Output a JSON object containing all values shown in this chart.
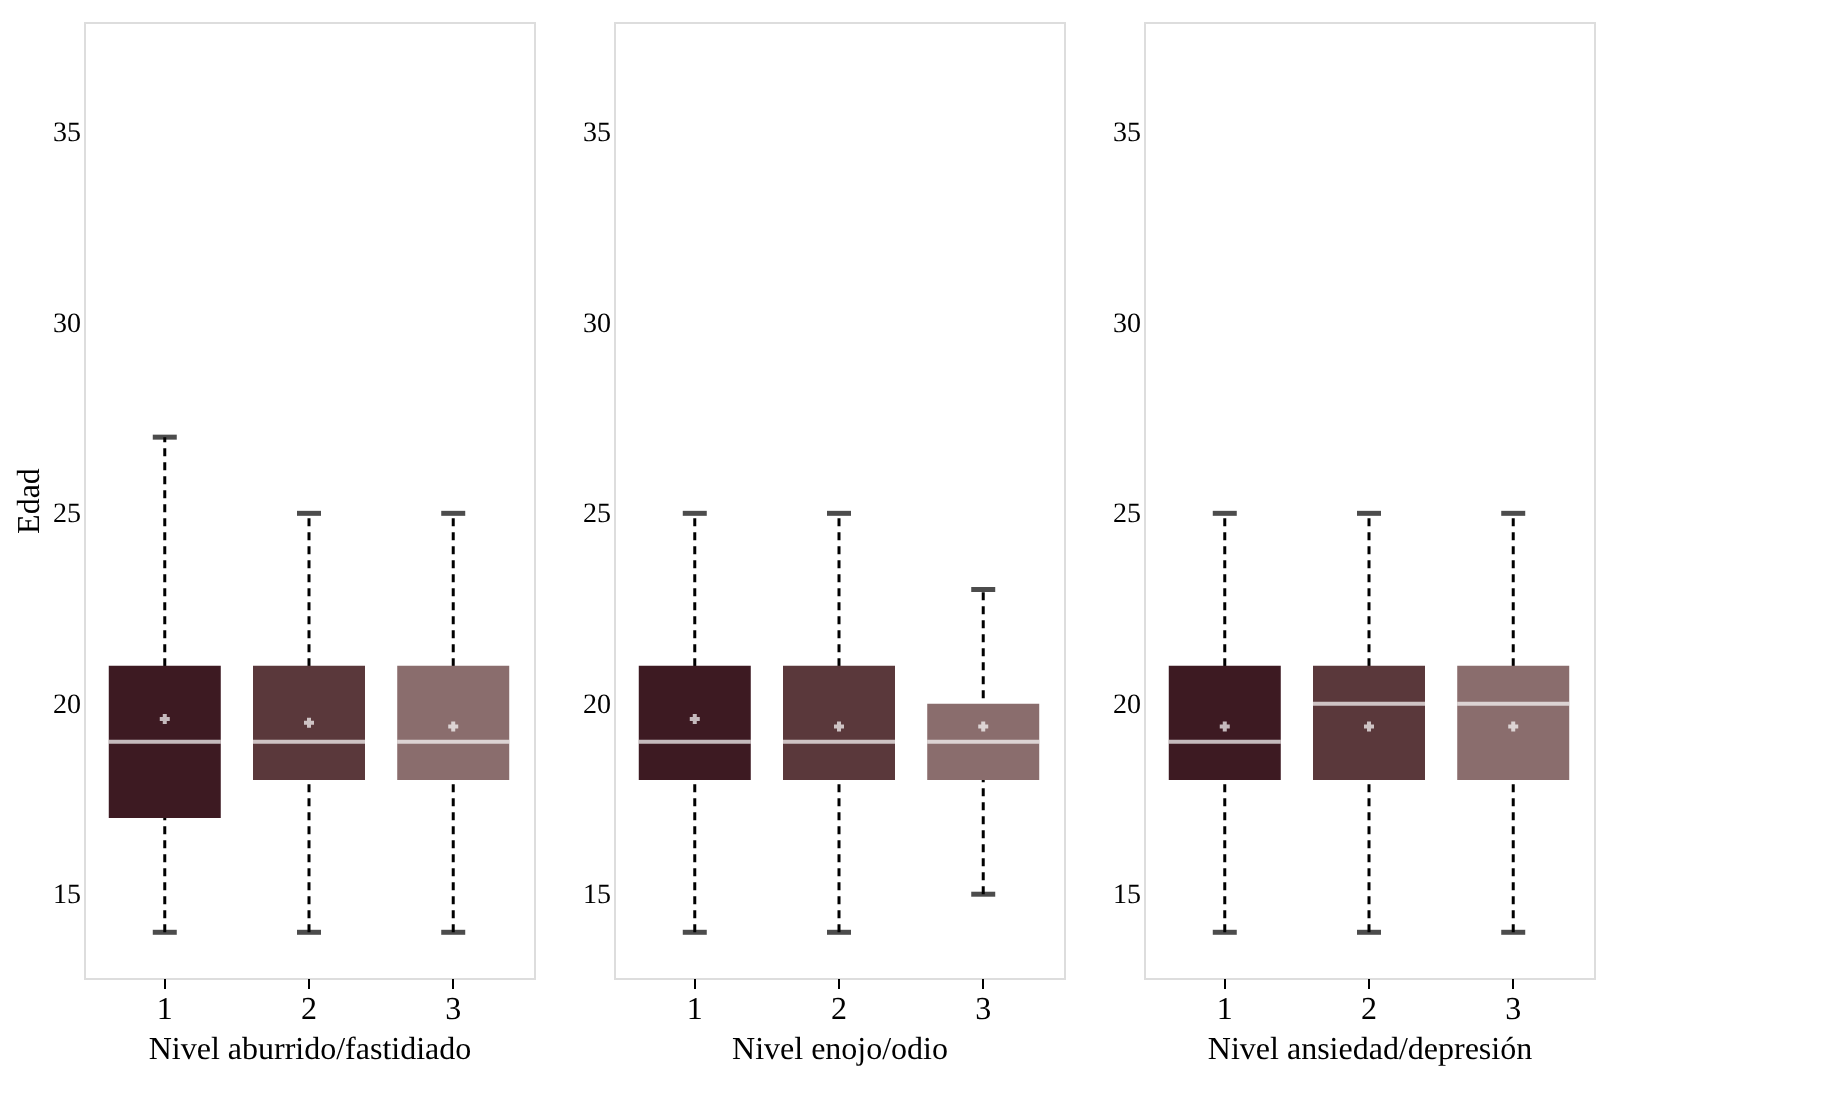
{
  "chart_data": [
    {
      "type": "box",
      "xlabel": "Nivel aburrido/fastidiado",
      "ylabel": "Edad",
      "categories": [
        "1",
        "2",
        "3"
      ],
      "colors": [
        "#3d1a22",
        "#5a383b",
        "#8a6d6d"
      ],
      "ylim": [
        12.8,
        37.9
      ],
      "yticks": [
        15,
        20,
        25,
        30,
        35
      ],
      "boxes": [
        {
          "low": 14,
          "q1": 17,
          "median": 19,
          "q3": 21,
          "high": 27,
          "mean": 19.6
        },
        {
          "low": 14,
          "q1": 18,
          "median": 19,
          "q3": 21,
          "high": 25,
          "mean": 19.5
        },
        {
          "low": 14,
          "q1": 18,
          "median": 19,
          "q3": 21,
          "high": 25,
          "mean": 19.4
        }
      ]
    },
    {
      "type": "box",
      "xlabel": "Nivel enojo/odio",
      "categories": [
        "1",
        "2",
        "3"
      ],
      "colors": [
        "#3d1a22",
        "#5a383b",
        "#8a6d6d"
      ],
      "ylim": [
        12.8,
        37.9
      ],
      "yticks": [
        15,
        20,
        25,
        30,
        35
      ],
      "boxes": [
        {
          "low": 14,
          "q1": 18,
          "median": 19,
          "q3": 21,
          "high": 25,
          "mean": 19.6
        },
        {
          "low": 14,
          "q1": 18,
          "median": 19,
          "q3": 21,
          "high": 25,
          "mean": 19.4
        },
        {
          "low": 15,
          "q1": 18,
          "median": 19,
          "q3": 20,
          "high": 23,
          "mean": 19.4
        }
      ]
    },
    {
      "type": "box",
      "xlabel": "Nivel ansiedad/depresión",
      "categories": [
        "1",
        "2",
        "3"
      ],
      "colors": [
        "#3d1a22",
        "#5a383b",
        "#8a6d6d"
      ],
      "ylim": [
        12.8,
        37.9
      ],
      "yticks": [
        15,
        20,
        25,
        30,
        35
      ],
      "boxes": [
        {
          "low": 14,
          "q1": 18,
          "median": 19,
          "q3": 21,
          "high": 25,
          "mean": 19.4
        },
        {
          "low": 14,
          "q1": 18,
          "median": 20,
          "q3": 21,
          "high": 25,
          "mean": 19.4
        },
        {
          "low": 14,
          "q1": 18,
          "median": 20,
          "q3": 21,
          "high": 25,
          "mean": 19.4
        }
      ]
    }
  ]
}
